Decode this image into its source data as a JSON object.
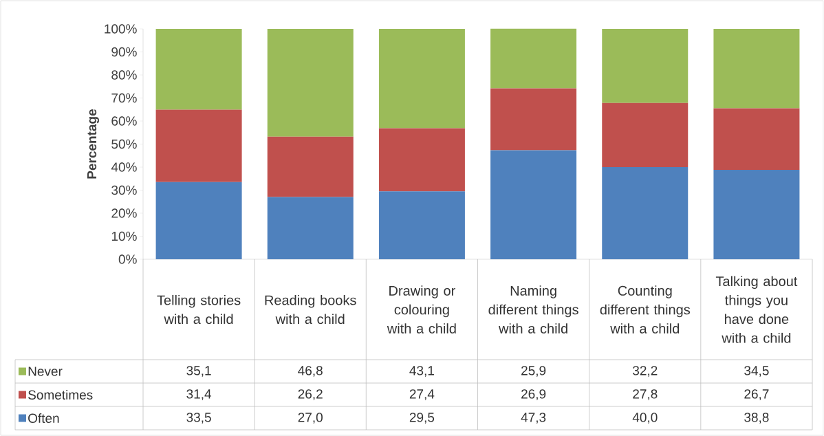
{
  "chart_data": {
    "type": "bar",
    "stacked": true,
    "ylabel": "Percentage",
    "categories": [
      "Telling stories with a child",
      "Reading books with a child",
      "Drawing or colouring with a child",
      "Naming different things with a child",
      "Counting different things with a child",
      "Talking about things you have done with a child"
    ],
    "series": [
      {
        "name": "Often",
        "color": "#4f81bd",
        "values": [
          33.5,
          27.0,
          29.5,
          47.3,
          40.0,
          38.8
        ],
        "value_labels": [
          "33,5",
          "27,0",
          "29,5",
          "47,3",
          "40,0",
          "38,8"
        ]
      },
      {
        "name": "Sometimes",
        "color": "#c0504d",
        "values": [
          31.4,
          26.2,
          27.4,
          26.9,
          27.8,
          26.7
        ],
        "value_labels": [
          "31,4",
          "26,2",
          "27,4",
          "26,9",
          "27,8",
          "26,7"
        ]
      },
      {
        "name": "Never",
        "color": "#9bbb59",
        "values": [
          35.1,
          46.8,
          43.1,
          25.9,
          32.2,
          34.5
        ],
        "value_labels": [
          "35,1",
          "46,8",
          "43,1",
          "25,9",
          "32,2",
          "34,5"
        ]
      }
    ],
    "ylim": [
      0,
      100
    ],
    "yticks": [
      {
        "value": 0,
        "label": "0%"
      },
      {
        "value": 10,
        "label": "10%"
      },
      {
        "value": 20,
        "label": "20%"
      },
      {
        "value": 30,
        "label": "30%"
      },
      {
        "value": 40,
        "label": "40%"
      },
      {
        "value": 50,
        "label": "50%"
      },
      {
        "value": 60,
        "label": "60%"
      },
      {
        "value": 70,
        "label": "70%"
      },
      {
        "value": 80,
        "label": "80%"
      },
      {
        "value": 90,
        "label": "90%"
      },
      {
        "value": 100,
        "label": "100%"
      }
    ],
    "legend": "bottom"
  }
}
